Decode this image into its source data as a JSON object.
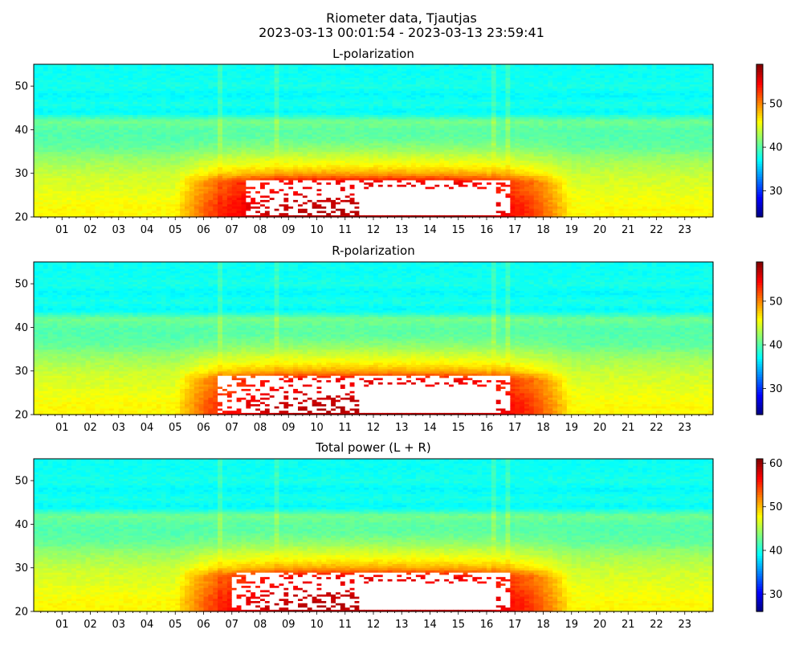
{
  "title": "Riometer data, Tjautjas",
  "subtitle": "2023-03-13 00:01:54 - 2023-03-13 23:59:41",
  "colors": {
    "colormap": "jet",
    "saturated": "#ffffff",
    "background": "#ffffff"
  },
  "chart_data": [
    {
      "type": "heatmap",
      "title": "L-polarization",
      "xlabel": "",
      "ylabel": "",
      "x_ticks": [
        "01",
        "02",
        "03",
        "04",
        "05",
        "06",
        "07",
        "08",
        "09",
        "10",
        "11",
        "12",
        "13",
        "14",
        "15",
        "16",
        "17",
        "18",
        "19",
        "20",
        "21",
        "22",
        "23"
      ],
      "xlim_hours": [
        0,
        24
      ],
      "y_ticks": [
        20,
        30,
        40,
        50
      ],
      "ylim": [
        20,
        55
      ],
      "colorbar": {
        "range": [
          24,
          59
        ],
        "ticks": [
          30,
          40,
          50
        ]
      },
      "value_profile": {
        "y": [
          20,
          22,
          24,
          26,
          28,
          30,
          32,
          34,
          36,
          38,
          40,
          42,
          43,
          44,
          46,
          48,
          50,
          52,
          55
        ],
        "quiet_value": [
          46,
          46,
          45.5,
          45,
          44.5,
          44,
          43,
          42,
          40.5,
          40,
          40,
          41,
          39,
          37,
          38,
          37,
          38,
          37.5,
          37.5
        ],
        "enhancement_peak": [
          11,
          11,
          11,
          10,
          11,
          5,
          3,
          2,
          1.5,
          0.5,
          0.3,
          0.2,
          0,
          0,
          0,
          0,
          0,
          0,
          0
        ]
      },
      "enhancement_window_hours": [
        5,
        19
      ],
      "saturated_region": {
        "hours": [
          7.5,
          16.8
        ],
        "y": [
          20.5,
          28.5
        ]
      },
      "vertical_streaks_hours": [
        6.6,
        8.6,
        16.2,
        16.7
      ]
    },
    {
      "type": "heatmap",
      "title": "R-polarization",
      "xlabel": "",
      "ylabel": "",
      "x_ticks": [
        "01",
        "02",
        "03",
        "04",
        "05",
        "06",
        "07",
        "08",
        "09",
        "10",
        "11",
        "12",
        "13",
        "14",
        "15",
        "16",
        "17",
        "18",
        "19",
        "20",
        "21",
        "22",
        "23"
      ],
      "xlim_hours": [
        0,
        24
      ],
      "y_ticks": [
        20,
        30,
        40,
        50
      ],
      "ylim": [
        20,
        55
      ],
      "colorbar": {
        "range": [
          24,
          59
        ],
        "ticks": [
          30,
          40,
          50
        ]
      },
      "value_profile": {
        "y": [
          20,
          22,
          24,
          26,
          28,
          30,
          32,
          34,
          36,
          38,
          40,
          42,
          43,
          44,
          46,
          48,
          50,
          52,
          55
        ],
        "quiet_value": [
          46,
          46,
          45.5,
          45,
          44.5,
          44,
          43,
          42,
          40.5,
          40,
          40,
          41,
          39,
          37,
          38,
          37,
          38,
          37.5,
          37.5
        ],
        "enhancement_peak": [
          11,
          11,
          11,
          10,
          11,
          5,
          3,
          2,
          1.5,
          0.5,
          0.3,
          0.2,
          0,
          0,
          0,
          0,
          0,
          0,
          0
        ]
      },
      "enhancement_window_hours": [
        5,
        19
      ],
      "saturated_region": {
        "hours": [
          6.5,
          16.8
        ],
        "y": [
          20.5,
          29
        ]
      },
      "vertical_streaks_hours": [
        6.6,
        8.6,
        16.2,
        16.7
      ]
    },
    {
      "type": "heatmap",
      "title": "Total power (L + R)",
      "xlabel": "",
      "ylabel": "",
      "x_ticks": [
        "01",
        "02",
        "03",
        "04",
        "05",
        "06",
        "07",
        "08",
        "09",
        "10",
        "11",
        "12",
        "13",
        "14",
        "15",
        "16",
        "17",
        "18",
        "19",
        "20",
        "21",
        "22",
        "23"
      ],
      "xlim_hours": [
        0,
        24
      ],
      "y_ticks": [
        20,
        30,
        40,
        50
      ],
      "ylim": [
        20,
        55
      ],
      "colorbar": {
        "range": [
          26,
          61
        ],
        "ticks": [
          30,
          40,
          50,
          60
        ]
      },
      "value_profile": {
        "y": [
          20,
          22,
          24,
          26,
          28,
          30,
          32,
          34,
          36,
          38,
          40,
          42,
          43,
          44,
          46,
          48,
          50,
          52,
          55
        ],
        "quiet_value": [
          48,
          48,
          47.5,
          47,
          46.5,
          46,
          45,
          44,
          42.5,
          42,
          42,
          43,
          41,
          39,
          40,
          39,
          40,
          39.5,
          39.5
        ],
        "enhancement_peak": [
          11,
          11,
          11,
          10,
          11,
          5,
          3,
          2,
          1.5,
          0.5,
          0.3,
          0.2,
          0,
          0,
          0,
          0,
          0,
          0,
          0
        ]
      },
      "enhancement_window_hours": [
        5,
        19
      ],
      "saturated_region": {
        "hours": [
          7,
          16.8
        ],
        "y": [
          20.5,
          29
        ]
      },
      "vertical_streaks_hours": [
        6.6,
        8.6,
        16.2,
        16.7
      ]
    }
  ]
}
